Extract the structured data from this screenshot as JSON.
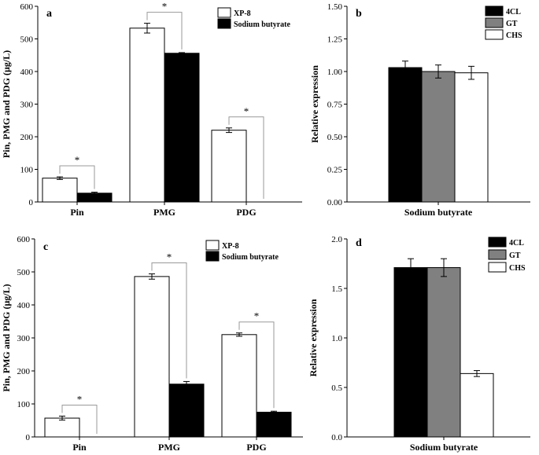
{
  "charts": [
    {
      "panel": "a",
      "type": "bar",
      "ylabel": "Pin, PMG and PDG (μg/L)",
      "ylim": [
        0,
        600
      ],
      "yticks": [
        0,
        100,
        200,
        300,
        400,
        500,
        600
      ],
      "ytick_labels": [
        "0",
        "100",
        "200",
        "300",
        "400",
        "500",
        "600"
      ],
      "categories": [
        "Pin",
        "PMG",
        "PDG"
      ],
      "legend_position": "top-right",
      "series": [
        {
          "name": "XP-8",
          "color": "#ffffff",
          "values": [
            73,
            533,
            220
          ],
          "errors": [
            4,
            15,
            7
          ]
        },
        {
          "name": "Sodium butyrate",
          "color": "#000000",
          "values": [
            27,
            456,
            0
          ],
          "errors": [
            3,
            2,
            0
          ]
        }
      ],
      "significance": [
        "*",
        "*",
        "*"
      ]
    },
    {
      "panel": "b",
      "type": "bar",
      "ylabel": "Relative expression",
      "xlabel": "Sodium butyrate",
      "ylim": [
        0,
        1.5
      ],
      "yticks": [
        0,
        0.25,
        0.5,
        0.75,
        1.0,
        1.25,
        1.5
      ],
      "ytick_labels": [
        "0.00",
        "0.25",
        "0.50",
        "0.75",
        "1.00",
        "1.25",
        "1.50"
      ],
      "legend_position": "top-right",
      "series": [
        {
          "name": "4CL",
          "color": "#000000",
          "values": [
            1.03
          ],
          "errors": [
            0.05
          ]
        },
        {
          "name": "GT",
          "color": "#808080",
          "values": [
            1.0
          ],
          "errors": [
            0.05
          ]
        },
        {
          "name": "CHS",
          "color": "#ffffff",
          "values": [
            0.99
          ],
          "errors": [
            0.05
          ]
        }
      ]
    },
    {
      "panel": "c",
      "type": "bar",
      "ylabel": "Pin, PMG and PDG (μg/L)",
      "ylim": [
        0,
        600
      ],
      "yticks": [
        0,
        100,
        200,
        300,
        400,
        500,
        600
      ],
      "ytick_labels": [
        "0",
        "100",
        "200",
        "300",
        "400",
        "500",
        "600"
      ],
      "categories": [
        "Pin",
        "PMG",
        "PDG"
      ],
      "legend_position": "top-right",
      "series": [
        {
          "name": "XP-8",
          "color": "#ffffff",
          "values": [
            57,
            486,
            310
          ],
          "errors": [
            6,
            8,
            5
          ]
        },
        {
          "name": "Sodium butyrate",
          "color": "#000000",
          "values": [
            0,
            160,
            75
          ],
          "errors": [
            0,
            8,
            3
          ]
        }
      ],
      "significance": [
        "*",
        "*",
        "*"
      ]
    },
    {
      "panel": "d",
      "type": "bar",
      "ylabel": "Relative expression",
      "xlabel": "Sodium butyrate",
      "ylim": [
        0,
        2.0
      ],
      "yticks": [
        0,
        0.5,
        1.0,
        1.5,
        2.0
      ],
      "ytick_labels": [
        "0.0",
        "0.5",
        "1.0",
        "1.5",
        "2.0"
      ],
      "legend_position": "top-right",
      "series": [
        {
          "name": "4CL",
          "color": "#000000",
          "values": [
            1.71
          ],
          "errors": [
            0.09
          ]
        },
        {
          "name": "GT",
          "color": "#808080",
          "values": [
            1.71
          ],
          "errors": [
            0.09
          ]
        },
        {
          "name": "CHS",
          "color": "#ffffff",
          "values": [
            0.64
          ],
          "errors": [
            0.03
          ]
        }
      ]
    }
  ]
}
